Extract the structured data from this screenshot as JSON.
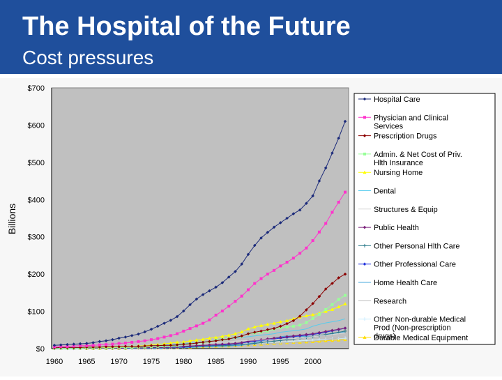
{
  "header": {
    "title": "The Hospital of the Future",
    "subtitle": "Cost pressures"
  },
  "chart_data": {
    "type": "line",
    "ylabel": "Billions",
    "xlabel": "",
    "ylim": [
      0,
      700
    ],
    "xlim": [
      1960,
      2005
    ],
    "y_ticks": [
      "$0",
      "$100",
      "$200",
      "$300",
      "$400",
      "$500",
      "$600",
      "$700"
    ],
    "x_ticks": [
      "1960",
      "1965",
      "1970",
      "1975",
      "1980",
      "1985",
      "1990",
      "1995",
      "2000"
    ],
    "legend_position": "right",
    "grid": false,
    "x": [
      1960,
      1961,
      1962,
      1963,
      1964,
      1965,
      1966,
      1967,
      1968,
      1969,
      1970,
      1971,
      1972,
      1973,
      1974,
      1975,
      1976,
      1977,
      1978,
      1979,
      1980,
      1981,
      1982,
      1983,
      1984,
      1985,
      1986,
      1987,
      1988,
      1989,
      1990,
      1991,
      1992,
      1993,
      1994,
      1995,
      1996,
      1997,
      1998,
      1999,
      2000,
      2001,
      2002,
      2003,
      2004,
      2005
    ],
    "series": [
      {
        "name": "Hospital Care",
        "color": "#1b2a7a",
        "marker": "diamond",
        "values": [
          9,
          10,
          11,
          12,
          13,
          14,
          16,
          19,
          21,
          24,
          28,
          31,
          35,
          39,
          45,
          52,
          60,
          68,
          76,
          86,
          101,
          118,
          133,
          145,
          155,
          165,
          177,
          192,
          207,
          227,
          253,
          277,
          297,
          312,
          326,
          338,
          350,
          362,
          372,
          390,
          410,
          450,
          485,
          525,
          565,
          610
        ]
      },
      {
        "name": "Physician and Clinical Services",
        "color": "#ff33cc",
        "marker": "square",
        "values": [
          5,
          6,
          6,
          7,
          8,
          8,
          9,
          10,
          11,
          12,
          14,
          15,
          17,
          19,
          21,
          24,
          27,
          31,
          35,
          40,
          47,
          54,
          61,
          68,
          77,
          90,
          101,
          114,
          127,
          141,
          158,
          175,
          188,
          200,
          210,
          222,
          232,
          243,
          256,
          270,
          290,
          313,
          336,
          366,
          393,
          420
        ]
      },
      {
        "name": "Prescription Drugs",
        "color": "#8b0000",
        "marker": "diamond",
        "values": [
          2,
          3,
          3,
          3,
          3,
          4,
          4,
          4,
          5,
          5,
          5,
          6,
          6,
          6,
          7,
          8,
          8,
          9,
          9,
          10,
          12,
          13,
          15,
          17,
          19,
          21,
          24,
          26,
          30,
          34,
          40,
          44,
          47,
          51,
          54,
          60,
          67,
          75,
          87,
          104,
          121,
          140,
          160,
          175,
          190,
          200
        ]
      },
      {
        "name": "Admin. & Net Cost of Priv. Hlth Insurance",
        "color": "#99ff99",
        "marker": "square",
        "values": [
          1,
          1,
          1,
          1,
          1,
          2,
          2,
          2,
          2,
          2,
          3,
          3,
          3,
          4,
          4,
          5,
          6,
          7,
          7,
          8,
          12,
          13,
          15,
          16,
          18,
          23,
          25,
          27,
          30,
          33,
          40,
          42,
          44,
          47,
          52,
          56,
          58,
          60,
          63,
          70,
          81,
          92,
          105,
          118,
          132,
          143
        ]
      },
      {
        "name": "Nursing Home",
        "color": "#ffff00",
        "marker": "triangle",
        "values": [
          1,
          1,
          1,
          1,
          1,
          2,
          2,
          2,
          3,
          3,
          4,
          5,
          6,
          7,
          8,
          10,
          11,
          13,
          15,
          17,
          18,
          21,
          23,
          25,
          28,
          30,
          33,
          36,
          40,
          45,
          53,
          58,
          62,
          65,
          68,
          72,
          75,
          80,
          85,
          88,
          91,
          95,
          100,
          105,
          112,
          120
        ]
      },
      {
        "name": "Dental",
        "color": "#55ccee",
        "marker": "none",
        "values": [
          2,
          2,
          2,
          2,
          3,
          3,
          3,
          4,
          4,
          4,
          5,
          5,
          6,
          6,
          7,
          8,
          9,
          10,
          11,
          12,
          13,
          15,
          16,
          18,
          19,
          22,
          24,
          26,
          28,
          30,
          32,
          34,
          36,
          38,
          40,
          44,
          46,
          48,
          50,
          53,
          60,
          65,
          69,
          72,
          75,
          80
        ]
      },
      {
        "name": "Structures & Equip",
        "color": "#d8d8d8",
        "marker": "none",
        "values": [
          3,
          3,
          3,
          3,
          4,
          4,
          4,
          5,
          5,
          6,
          6,
          6,
          7,
          7,
          8,
          8,
          9,
          9,
          10,
          11,
          12,
          13,
          14,
          15,
          15,
          16,
          17,
          18,
          20,
          21,
          22,
          23,
          23,
          24,
          24,
          25,
          26,
          27,
          28,
          30,
          32,
          34,
          36,
          38,
          40,
          42
        ]
      },
      {
        "name": "Public Health",
        "color": "#7a1f7a",
        "marker": "diamond",
        "values": [
          1,
          1,
          1,
          1,
          1,
          1,
          1,
          1,
          1,
          1,
          1,
          2,
          2,
          2,
          2,
          3,
          3,
          3,
          4,
          4,
          6,
          7,
          8,
          9,
          10,
          11,
          12,
          13,
          14,
          16,
          20,
          22,
          24,
          26,
          28,
          30,
          32,
          34,
          36,
          38,
          40,
          43,
          46,
          49,
          52,
          55
        ]
      },
      {
        "name": "Other Personal Hlth Care",
        "color": "#2b7a8a",
        "marker": "plus",
        "values": [
          1,
          1,
          1,
          1,
          1,
          1,
          1,
          2,
          2,
          2,
          2,
          2,
          2,
          3,
          3,
          3,
          3,
          4,
          4,
          5,
          5,
          6,
          6,
          7,
          7,
          8,
          8,
          9,
          10,
          11,
          12,
          14,
          16,
          18,
          20,
          22,
          24,
          26,
          28,
          30,
          32,
          35,
          38,
          41,
          44,
          47
        ]
      },
      {
        "name": "Other Professional Care",
        "color": "#2233dd",
        "marker": "diamond",
        "values": [
          0,
          0,
          0,
          0,
          1,
          1,
          1,
          1,
          1,
          1,
          1,
          1,
          2,
          2,
          2,
          2,
          3,
          3,
          3,
          4,
          4,
          5,
          6,
          7,
          8,
          9,
          10,
          11,
          13,
          15,
          18,
          20,
          22,
          24,
          26,
          28,
          30,
          32,
          34,
          36,
          38,
          41,
          44,
          48,
          51,
          55
        ]
      },
      {
        "name": "Home Health Care",
        "color": "#44aadd",
        "marker": "none",
        "values": [
          0,
          0,
          0,
          0,
          0,
          0,
          0,
          0,
          0,
          0,
          0,
          0,
          0,
          1,
          1,
          1,
          1,
          1,
          2,
          2,
          2,
          3,
          4,
          5,
          5,
          6,
          6,
          7,
          8,
          9,
          13,
          16,
          20,
          24,
          28,
          32,
          34,
          34,
          33,
          32,
          32,
          34,
          37,
          40,
          43,
          45
        ]
      },
      {
        "name": "Research",
        "color": "#bbbbbb",
        "marker": "none",
        "values": [
          1,
          1,
          1,
          1,
          1,
          2,
          2,
          2,
          2,
          2,
          2,
          2,
          2,
          3,
          3,
          3,
          3,
          4,
          4,
          4,
          5,
          5,
          5,
          6,
          6,
          7,
          7,
          8,
          8,
          9,
          10,
          11,
          12,
          13,
          14,
          15,
          16,
          17,
          18,
          19,
          20,
          22,
          24,
          26,
          28,
          30
        ]
      },
      {
        "name": "Other Non-durable Medical Prod (Non-prescription drugs)",
        "color": "#cceeff",
        "marker": "plus",
        "values": [
          2,
          2,
          2,
          2,
          2,
          2,
          3,
          3,
          3,
          3,
          3,
          3,
          4,
          4,
          4,
          5,
          5,
          5,
          5,
          6,
          6,
          7,
          7,
          8,
          8,
          9,
          9,
          10,
          10,
          11,
          13,
          14,
          15,
          16,
          17,
          18,
          19,
          20,
          21,
          22,
          23,
          24,
          25,
          26,
          27,
          28
        ]
      },
      {
        "name": "Durable Medical Equipment",
        "color": "#ffdd00",
        "marker": "triangle",
        "values": [
          1,
          1,
          1,
          1,
          1,
          1,
          1,
          1,
          1,
          1,
          1,
          1,
          2,
          2,
          2,
          2,
          2,
          2,
          3,
          3,
          4,
          4,
          5,
          5,
          6,
          6,
          7,
          7,
          8,
          9,
          10,
          11,
          12,
          13,
          14,
          15,
          16,
          17,
          17,
          18,
          19,
          20,
          21,
          22,
          23,
          24
        ]
      }
    ]
  }
}
